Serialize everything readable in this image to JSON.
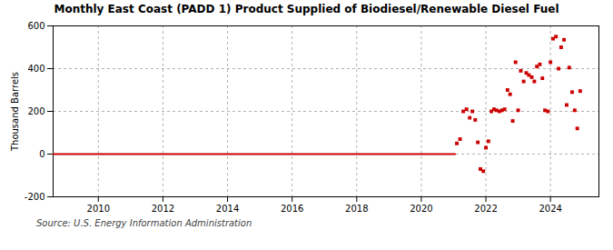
{
  "chart_data": {
    "type": "scatter",
    "title": "Monthly East Coast (PADD 1) Product Supplied of Biodiesel/Renewable Diesel Fuel",
    "ylabel": "Thousand Barrels",
    "annotations": [
      "Source: U.S. Energy Information Administration"
    ],
    "xlim": [
      2008.6,
      2025.5
    ],
    "xticks": [
      2010,
      2012,
      2014,
      2016,
      2018,
      2020,
      2022,
      2024
    ],
    "ylim": [
      -200,
      600
    ],
    "yticks": [
      -200,
      0,
      200,
      400,
      600
    ],
    "grid": true,
    "series": [
      {
        "type": "line",
        "color": "#cc0000",
        "x": [
          2008.6,
          2021.05
        ],
        "values": [
          0,
          0
        ]
      },
      {
        "type": "scatter",
        "color": "#cc0000",
        "marker": "square",
        "x": [
          2021.1,
          2021.2,
          2021.3,
          2021.4,
          2021.5,
          2021.58,
          2021.67,
          2021.75,
          2021.83,
          2021.92,
          2022.0,
          2022.08,
          2022.17,
          2022.25,
          2022.33,
          2022.42,
          2022.5,
          2022.58,
          2022.67,
          2022.75,
          2022.83,
          2022.92,
          2023.0,
          2023.08,
          2023.17,
          2023.25,
          2023.33,
          2023.42,
          2023.5,
          2023.58,
          2023.67,
          2023.75,
          2023.83,
          2023.92,
          2024.0,
          2024.08,
          2024.17,
          2024.25,
          2024.33,
          2024.42,
          2024.5,
          2024.58,
          2024.67,
          2024.75,
          2024.83,
          2024.92
        ],
        "values": [
          50,
          70,
          200,
          210,
          170,
          200,
          160,
          55,
          -70,
          -80,
          30,
          60,
          200,
          210,
          205,
          200,
          205,
          210,
          300,
          280,
          155,
          430,
          205,
          390,
          340,
          380,
          370,
          360,
          340,
          410,
          420,
          355,
          205,
          200,
          430,
          540,
          550,
          400,
          500,
          535,
          230,
          405,
          290,
          205,
          120,
          295
        ]
      }
    ]
  }
}
